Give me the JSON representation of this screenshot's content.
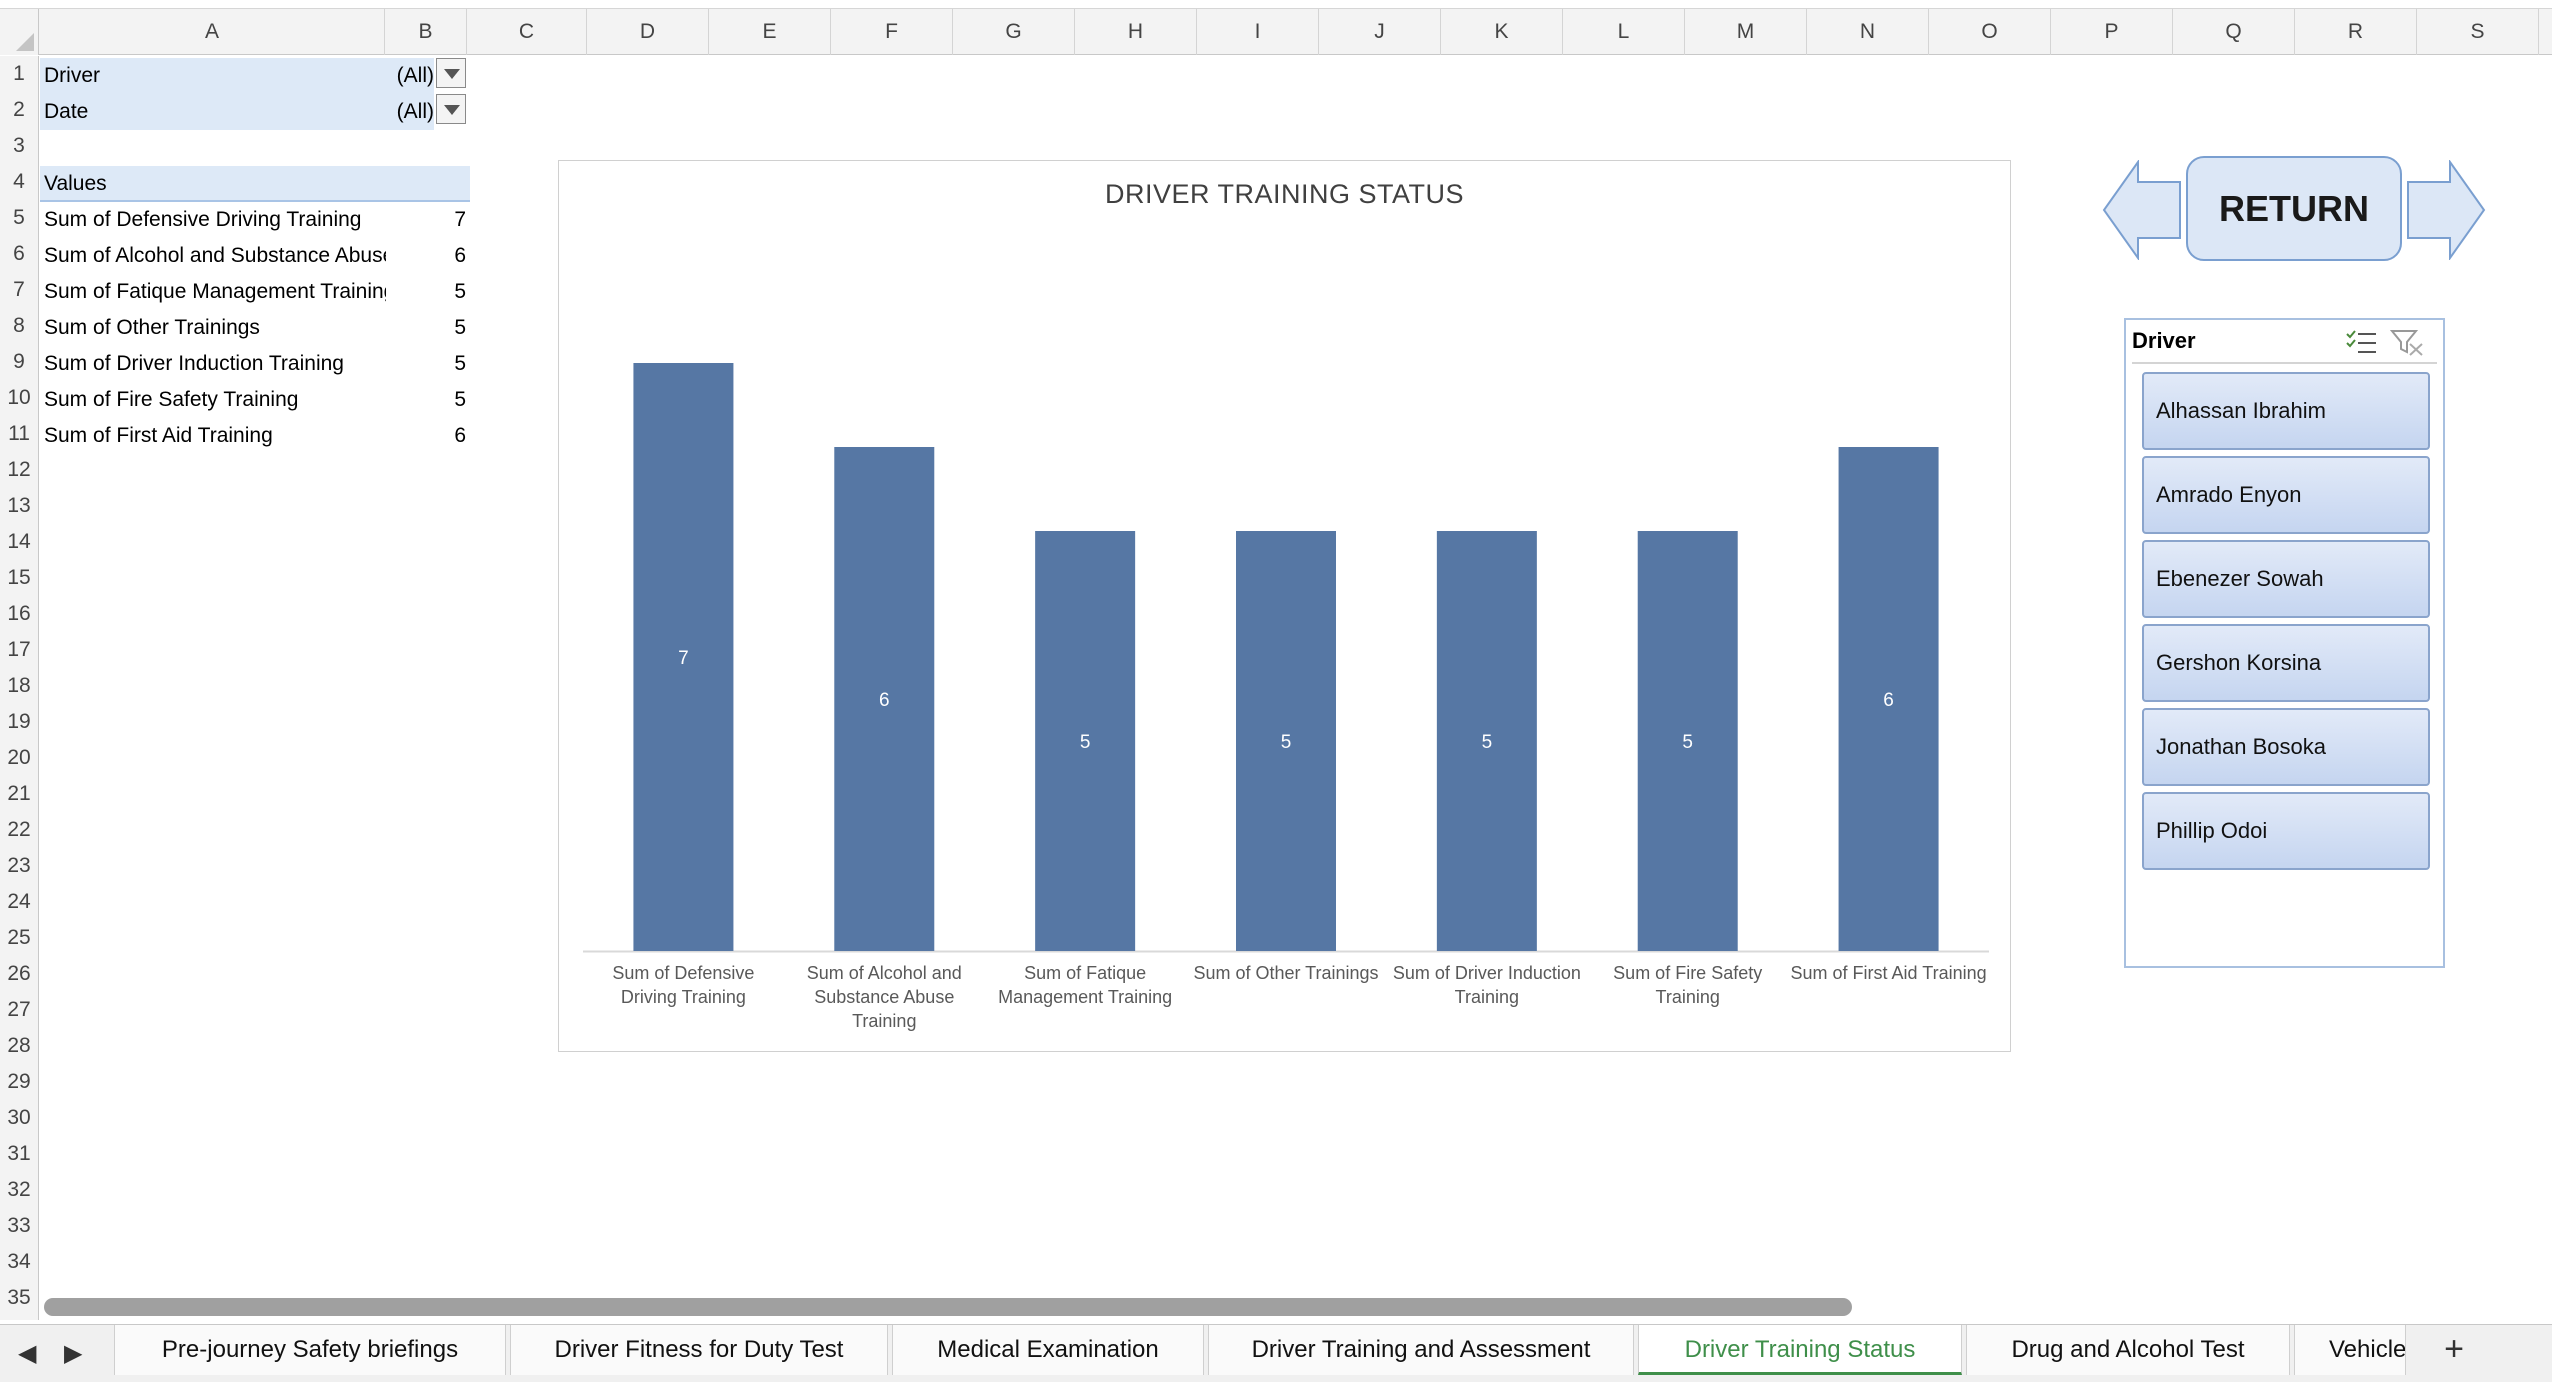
{
  "columns": [
    "A",
    "B",
    "C",
    "D",
    "E",
    "F",
    "G",
    "H",
    "I",
    "J",
    "K",
    "L",
    "M",
    "N",
    "O",
    "P",
    "Q",
    "R",
    "S"
  ],
  "rows": [
    "1",
    "2",
    "3",
    "4",
    "5",
    "6",
    "7",
    "8",
    "9",
    "10",
    "11",
    "12",
    "13",
    "14",
    "15",
    "16",
    "17",
    "18",
    "19",
    "20",
    "21",
    "22",
    "23",
    "24",
    "25",
    "26",
    "27",
    "28",
    "29",
    "30",
    "31",
    "32",
    "33",
    "34",
    "35"
  ],
  "pivot": {
    "filters": [
      {
        "label": "Driver",
        "value": "(All)"
      },
      {
        "label": "Date",
        "value": "(All)"
      }
    ],
    "values_header": "Values",
    "rows": [
      {
        "label": "Sum of  Defensive Driving Training",
        "value": "7"
      },
      {
        "label": "Sum of Alcohol and Substance Abuse Training",
        "value": "6"
      },
      {
        "label": "Sum of Fatique Management Training",
        "value": "5"
      },
      {
        "label": "Sum of Other Trainings",
        "value": "5"
      },
      {
        "label": "Sum of Driver Induction Training",
        "value": "5"
      },
      {
        "label": "Sum of Fire Safety Training",
        "value": "5"
      },
      {
        "label": "Sum of First Aid Training",
        "value": "6"
      }
    ]
  },
  "chart_data": {
    "type": "bar",
    "title": "DRIVER TRAINING STATUS",
    "categories": [
      [
        "Sum of  Defensive",
        "Driving Training"
      ],
      [
        "Sum of Alcohol and",
        "Substance Abuse",
        "Training"
      ],
      [
        "Sum of Fatique",
        "Management Training"
      ],
      [
        "Sum of Other Trainings"
      ],
      [
        "Sum of Driver Induction",
        "Training"
      ],
      [
        "Sum of Fire Safety",
        "Training"
      ],
      [
        "Sum of First Aid Training"
      ]
    ],
    "values": [
      7,
      6,
      5,
      5,
      5,
      5,
      6
    ],
    "ylim": [
      0,
      8
    ],
    "grid": false,
    "legend": "none",
    "data_labels": true,
    "bar_color": "#5677a4",
    "label_color": "#ffffff"
  },
  "return_button": {
    "label": "RETURN"
  },
  "slicer": {
    "title": "Driver",
    "items": [
      "Alhassan Ibrahim",
      "Amrado Enyon",
      "Ebenezer Sowah",
      "Gershon Korsina",
      "Jonathan Bosoka",
      "Phillip Odoi"
    ]
  },
  "tabs": {
    "prev": "◀",
    "next": "▶",
    "items": [
      "Pre-journey Safety briefings",
      "Driver Fitness for Duty Test",
      "Medical Examination",
      "Driver Training and Assessment",
      "Driver Training Status",
      "Drug and Alcohol Test",
      "Vehicle"
    ],
    "active_index": 4,
    "add": "+"
  },
  "colors": {
    "accent_tab": "#3f8f4a",
    "bar": "#5677a4",
    "pivot_fill": "#dde9f7"
  }
}
